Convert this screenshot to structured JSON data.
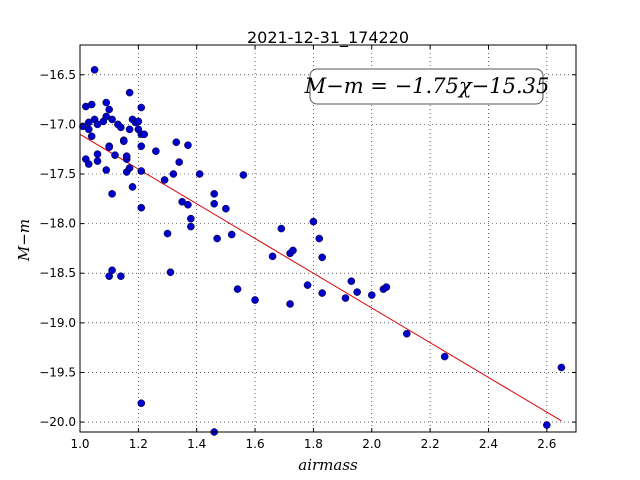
{
  "chart_data": {
    "type": "scatter",
    "title": "2021-12-31_174220",
    "xlabel": "airmass",
    "ylabel": "M−m",
    "xlim": [
      1.0,
      2.7
    ],
    "ylim": [
      -16.2,
      -20.1
    ],
    "grid": true,
    "xticks": [
      "1.0",
      "1.2",
      "1.4",
      "1.6",
      "1.8",
      "2.0",
      "2.2",
      "2.4",
      "2.6"
    ],
    "yticks": [
      "−16.5",
      "−17.0",
      "−17.5",
      "−18.0",
      "−18.5",
      "−19.0",
      "−19.5",
      "−20.0"
    ],
    "annotation": "M−m = −1.75χ−15.35",
    "fit": {
      "slope": -1.75,
      "intercept": -15.35,
      "x_range": [
        1.0,
        2.65
      ],
      "color": "#dd0000"
    },
    "point_color": "#0000c8",
    "points": [
      {
        "x": 1.01,
        "y": -17.02
      },
      {
        "x": 1.02,
        "y": -17.35
      },
      {
        "x": 1.02,
        "y": -16.82
      },
      {
        "x": 1.03,
        "y": -17.4
      },
      {
        "x": 1.03,
        "y": -17.05
      },
      {
        "x": 1.03,
        "y": -16.98
      },
      {
        "x": 1.04,
        "y": -17.12
      },
      {
        "x": 1.04,
        "y": -16.8
      },
      {
        "x": 1.05,
        "y": -16.45
      },
      {
        "x": 1.05,
        "y": -16.95
      },
      {
        "x": 1.06,
        "y": -17.0
      },
      {
        "x": 1.06,
        "y": -17.37
      },
      {
        "x": 1.06,
        "y": -17.3
      },
      {
        "x": 1.08,
        "y": -16.97
      },
      {
        "x": 1.09,
        "y": -16.78
      },
      {
        "x": 1.09,
        "y": -16.92
      },
      {
        "x": 1.1,
        "y": -16.85
      },
      {
        "x": 1.09,
        "y": -17.46
      },
      {
        "x": 1.1,
        "y": -17.22
      },
      {
        "x": 1.1,
        "y": -17.23
      },
      {
        "x": 1.11,
        "y": -16.95
      },
      {
        "x": 1.11,
        "y": -17.7
      },
      {
        "x": 1.1,
        "y": -18.53
      },
      {
        "x": 1.11,
        "y": -18.47
      },
      {
        "x": 1.12,
        "y": -17.31
      },
      {
        "x": 1.13,
        "y": -17.0
      },
      {
        "x": 1.14,
        "y": -17.03
      },
      {
        "x": 1.14,
        "y": -18.53
      },
      {
        "x": 1.15,
        "y": -17.16
      },
      {
        "x": 1.15,
        "y": -17.17
      },
      {
        "x": 1.16,
        "y": -17.35
      },
      {
        "x": 1.16,
        "y": -17.32
      },
      {
        "x": 1.16,
        "y": -17.48
      },
      {
        "x": 1.17,
        "y": -17.44
      },
      {
        "x": 1.17,
        "y": -17.05
      },
      {
        "x": 1.17,
        "y": -16.68
      },
      {
        "x": 1.18,
        "y": -16.95
      },
      {
        "x": 1.18,
        "y": -17.63
      },
      {
        "x": 1.19,
        "y": -16.98
      },
      {
        "x": 1.2,
        "y": -17.05
      },
      {
        "x": 1.2,
        "y": -16.97
      },
      {
        "x": 1.21,
        "y": -17.47
      },
      {
        "x": 1.21,
        "y": -17.22
      },
      {
        "x": 1.21,
        "y": -17.1
      },
      {
        "x": 1.21,
        "y": -16.83
      },
      {
        "x": 1.22,
        "y": -17.1
      },
      {
        "x": 1.21,
        "y": -17.84
      },
      {
        "x": 1.21,
        "y": -19.81
      },
      {
        "x": 1.26,
        "y": -17.27
      },
      {
        "x": 1.29,
        "y": -17.56
      },
      {
        "x": 1.3,
        "y": -18.1
      },
      {
        "x": 1.31,
        "y": -18.49
      },
      {
        "x": 1.32,
        "y": -17.5
      },
      {
        "x": 1.33,
        "y": -17.18
      },
      {
        "x": 1.34,
        "y": -17.38
      },
      {
        "x": 1.35,
        "y": -17.78
      },
      {
        "x": 1.37,
        "y": -17.21
      },
      {
        "x": 1.37,
        "y": -17.81
      },
      {
        "x": 1.38,
        "y": -18.03
      },
      {
        "x": 1.38,
        "y": -17.95
      },
      {
        "x": 1.41,
        "y": -17.5
      },
      {
        "x": 1.46,
        "y": -17.7
      },
      {
        "x": 1.46,
        "y": -17.8
      },
      {
        "x": 1.47,
        "y": -18.15
      },
      {
        "x": 1.46,
        "y": -20.12
      },
      {
        "x": 1.5,
        "y": -17.85
      },
      {
        "x": 1.52,
        "y": -18.11
      },
      {
        "x": 1.54,
        "y": -18.66
      },
      {
        "x": 1.56,
        "y": -17.51
      },
      {
        "x": 1.6,
        "y": -18.77
      },
      {
        "x": 1.66,
        "y": -18.33
      },
      {
        "x": 1.69,
        "y": -18.05
      },
      {
        "x": 1.72,
        "y": -18.3
      },
      {
        "x": 1.73,
        "y": -18.27
      },
      {
        "x": 1.72,
        "y": -18.81
      },
      {
        "x": 1.78,
        "y": -18.62
      },
      {
        "x": 1.8,
        "y": -17.98
      },
      {
        "x": 1.82,
        "y": -18.15
      },
      {
        "x": 1.83,
        "y": -18.34
      },
      {
        "x": 1.83,
        "y": -18.7
      },
      {
        "x": 1.91,
        "y": -18.75
      },
      {
        "x": 1.93,
        "y": -18.58
      },
      {
        "x": 1.95,
        "y": -18.69
      },
      {
        "x": 2.0,
        "y": -18.72
      },
      {
        "x": 2.04,
        "y": -18.66
      },
      {
        "x": 2.05,
        "y": -18.64
      },
      {
        "x": 2.12,
        "y": -19.11
      },
      {
        "x": 2.25,
        "y": -19.34
      },
      {
        "x": 2.6,
        "y": -20.03
      },
      {
        "x": 2.65,
        "y": -19.45
      }
    ]
  }
}
